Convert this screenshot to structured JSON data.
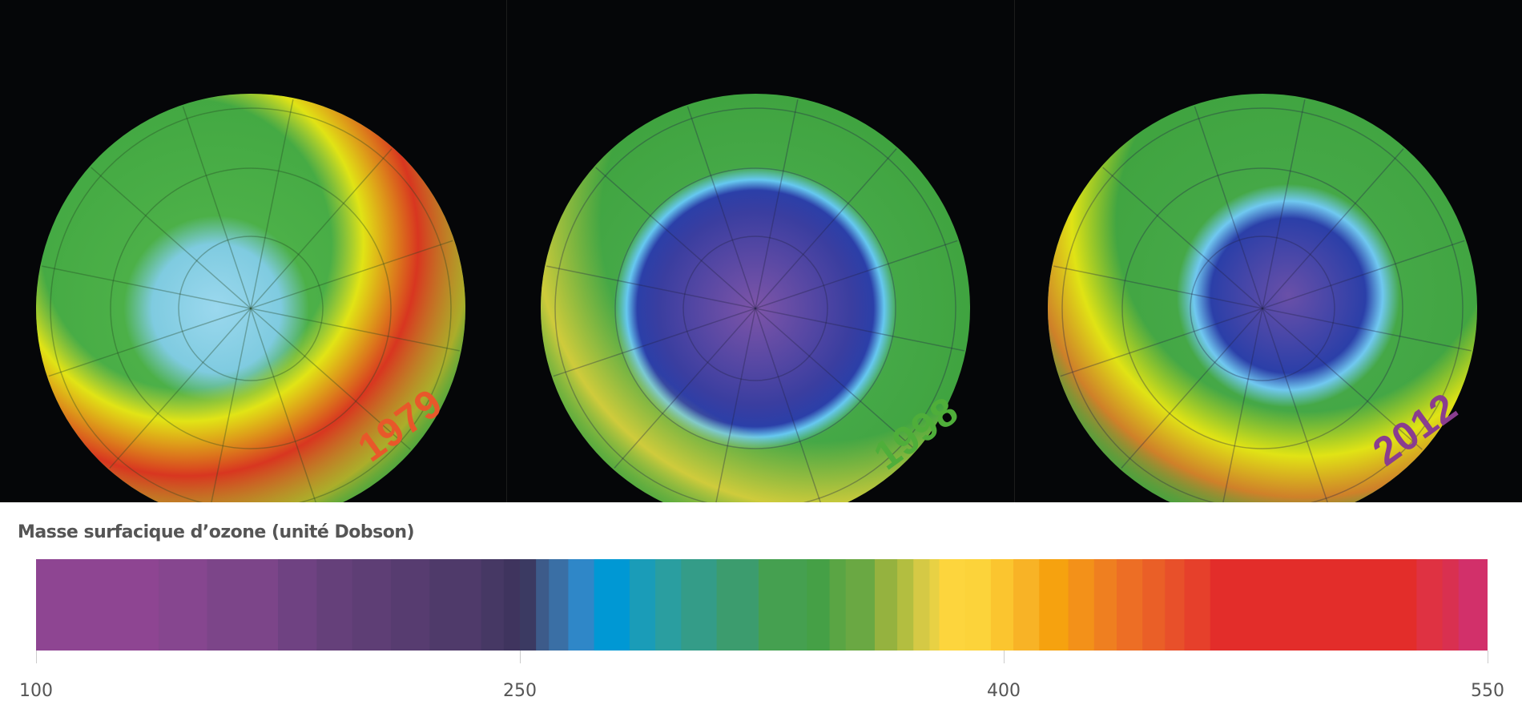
{
  "maps": [
    {
      "year": "1979",
      "year_color": "#e8582a",
      "hole": "light-blue",
      "ring_color": "#e0301e",
      "ring_side": "lower-right"
    },
    {
      "year": "1998",
      "year_color": "#4fae3a",
      "hole": "deep-blue-purple",
      "ring_color": "#e8d23a",
      "ring_side": "lower-left"
    },
    {
      "year": "2012",
      "year_color": "#8a3d8f",
      "hole": "deep-blue-purple",
      "ring_color": "#e87a25",
      "ring_side": "lower-left"
    }
  ],
  "legend": {
    "title": "Masse surfacique d’ozone (unité Dobson)",
    "min": 100,
    "max": 550,
    "ticks": [
      "100",
      "250",
      "400",
      "550"
    ],
    "tick_values": [
      100,
      250,
      400,
      550
    ],
    "color_stops": [
      {
        "from": 100,
        "color": "#8e4592"
      },
      {
        "from": 138,
        "color": "#86468f"
      },
      {
        "from": 153,
        "color": "#7c4589"
      },
      {
        "from": 175,
        "color": "#6f4282"
      },
      {
        "from": 187,
        "color": "#65407a"
      },
      {
        "from": 198,
        "color": "#5e3e75"
      },
      {
        "from": 210,
        "color": "#573c70"
      },
      {
        "from": 222,
        "color": "#4f3a6a"
      },
      {
        "from": 238,
        "color": "#463864"
      },
      {
        "from": 245,
        "color": "#3f345e"
      },
      {
        "from": 250,
        "color": "#3b3a62"
      },
      {
        "from": 255,
        "color": "#3d5b8a"
      },
      {
        "from": 259,
        "color": "#3a6fa5"
      },
      {
        "from": 265,
        "color": "#2f87c8"
      },
      {
        "from": 273,
        "color": "#0098d4"
      },
      {
        "from": 284,
        "color": "#1a9cb8"
      },
      {
        "from": 292,
        "color": "#2a9ea0"
      },
      {
        "from": 300,
        "color": "#349c88"
      },
      {
        "from": 311,
        "color": "#3c9c6e"
      },
      {
        "from": 324,
        "color": "#45a050"
      },
      {
        "from": 339,
        "color": "#45a046"
      },
      {
        "from": 346,
        "color": "#5aa544"
      },
      {
        "from": 351,
        "color": "#6aa843"
      },
      {
        "from": 360,
        "color": "#95b23f"
      },
      {
        "from": 367,
        "color": "#b3be40"
      },
      {
        "from": 372,
        "color": "#d5c945"
      },
      {
        "from": 377,
        "color": "#e8d144"
      },
      {
        "from": 380,
        "color": "#fdd53d"
      },
      {
        "from": 388,
        "color": "#fcd33a"
      },
      {
        "from": 396,
        "color": "#fbc52f"
      },
      {
        "from": 403,
        "color": "#f8b326"
      },
      {
        "from": 411,
        "color": "#f6a20f"
      },
      {
        "from": 420,
        "color": "#f39119"
      },
      {
        "from": 428,
        "color": "#ef7f20"
      },
      {
        "from": 435,
        "color": "#ed6e25"
      },
      {
        "from": 443,
        "color": "#ea5f27"
      },
      {
        "from": 450,
        "color": "#e8502a"
      },
      {
        "from": 456,
        "color": "#e6402b"
      },
      {
        "from": 464,
        "color": "#e32d2a"
      },
      {
        "from": 528,
        "color": "#df3242"
      },
      {
        "from": 536,
        "color": "#d93050"
      },
      {
        "from": 541,
        "color": "#d2306a"
      }
    ]
  }
}
